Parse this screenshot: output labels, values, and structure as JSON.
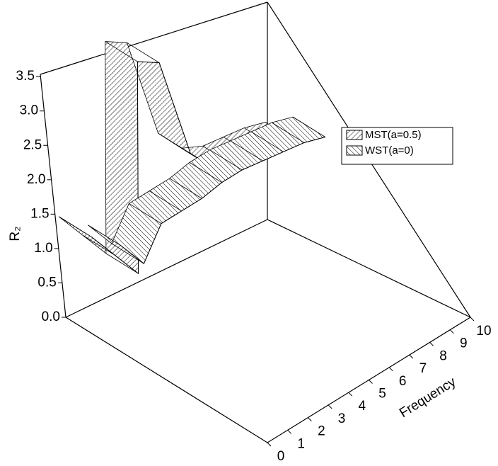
{
  "chart_data": {
    "type": "ribbon3d",
    "ylabel": "R₂",
    "xlabel": "Frequency",
    "x": [
      0,
      1,
      2,
      3,
      4,
      5,
      6,
      7,
      8,
      9,
      10
    ],
    "xlim": [
      0,
      10
    ],
    "xticks": [
      0,
      1,
      2,
      3,
      4,
      5,
      6,
      7,
      8,
      9,
      10
    ],
    "ylim": [
      0,
      3.5
    ],
    "yticks": [
      {
        "value": 0,
        "label": "0.0"
      },
      0.5,
      {
        "value": 1,
        "label": "1.0"
      },
      1.5,
      {
        "value": 2,
        "label": "2.0"
      },
      2.5,
      {
        "value": 3,
        "label": "3.0"
      },
      3.5
    ],
    "legend": "upper right",
    "series": [
      {
        "name": "MST(a=0.5)",
        "color": "#000000",
        "values": [
          1.5,
          1.05,
          0.6,
          3.5,
          3.3,
          1.8,
          1.4,
          1.25,
          1.2,
          1.15,
          1.05
        ]
      },
      {
        "name": "WST(a=0)",
        "color": "#000000",
        "values": [
          1.65,
          1.2,
          1.6,
          1.6,
          1.6,
          1.65,
          1.65,
          1.6,
          1.55,
          1.5,
          1.4
        ]
      }
    ]
  }
}
